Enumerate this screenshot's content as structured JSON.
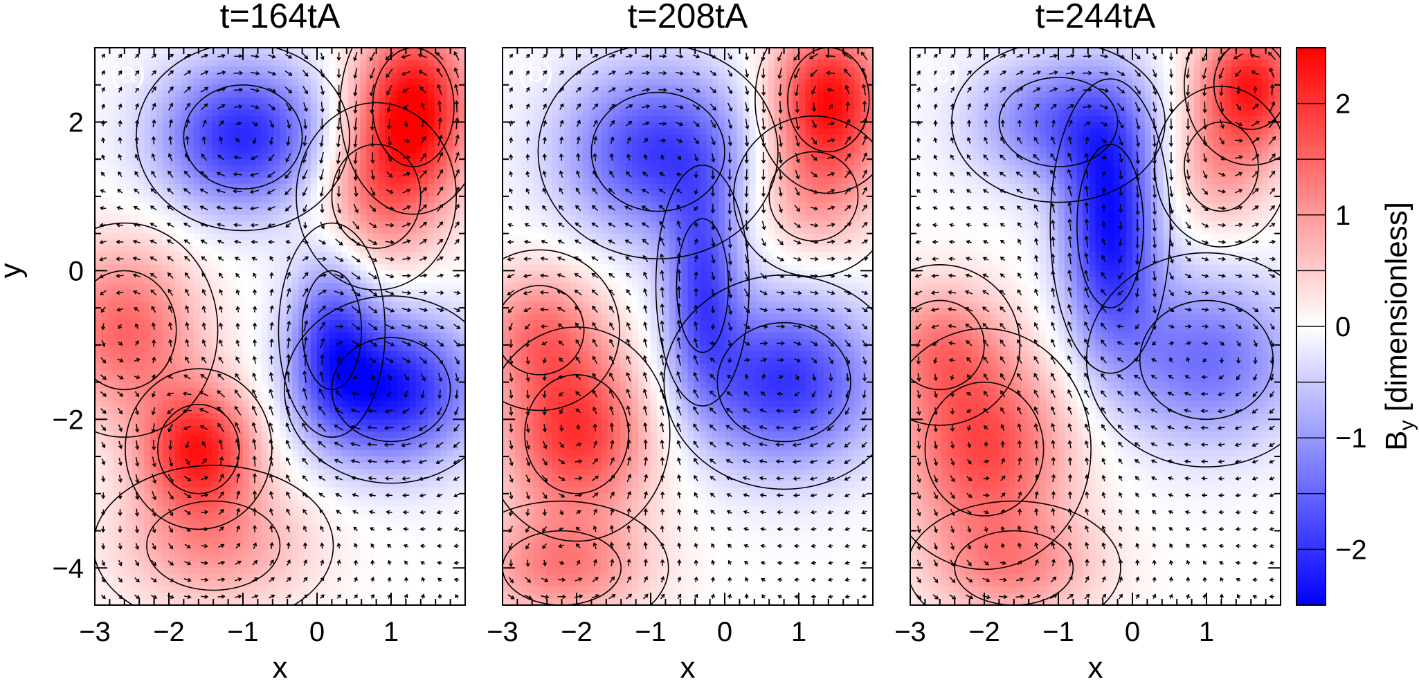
{
  "chart_data": {
    "type": "heatmap",
    "panels": [
      {
        "id": "a",
        "letter": "(a)",
        "title": "t=164tA",
        "xlabel": "x",
        "ylabel": "y",
        "xlim": [
          -3,
          2
        ],
        "ylim": [
          -4.5,
          3
        ],
        "xticks": [
          -3,
          -2,
          -1,
          0,
          1
        ],
        "xtick_labels": [
          "−3",
          "−2",
          "−1",
          "0",
          "1"
        ],
        "yticks": [
          -4,
          -2,
          0,
          2
        ],
        "ytick_labels": [
          "−4",
          "−2",
          "0",
          "2"
        ],
        "field_blobs": [
          {
            "x": 1.3,
            "y": 2.2,
            "amp": 2.5,
            "sx": 0.55,
            "sy": 0.8
          },
          {
            "x": 0.8,
            "y": 1.0,
            "amp": 1.2,
            "sx": 0.6,
            "sy": 0.7
          },
          {
            "x": -1.0,
            "y": 1.8,
            "amp": -2.1,
            "sx": 0.8,
            "sy": 0.7
          },
          {
            "x": 1.0,
            "y": -1.6,
            "amp": -2.3,
            "sx": 0.8,
            "sy": 0.7
          },
          {
            "x": 0.2,
            "y": -0.8,
            "amp": -1.4,
            "sx": 0.4,
            "sy": 0.8
          },
          {
            "x": -1.6,
            "y": -2.4,
            "amp": 2.2,
            "sx": 0.55,
            "sy": 0.6
          },
          {
            "x": -2.6,
            "y": -0.8,
            "amp": 1.5,
            "sx": 0.7,
            "sy": 0.8
          },
          {
            "x": -1.4,
            "y": -3.7,
            "amp": 1.0,
            "sx": 0.9,
            "sy": 0.6
          }
        ]
      },
      {
        "id": "b",
        "letter": "(b)",
        "title": "t=208tA",
        "xlabel": "x",
        "ylabel": "",
        "xlim": [
          -3,
          2
        ],
        "ylim": [
          -4.5,
          3
        ],
        "xticks": [
          -3,
          -2,
          -1,
          0,
          1
        ],
        "xtick_labels": [
          "−3",
          "−2",
          "−1",
          "0",
          "1"
        ],
        "yticks": [
          -4,
          -2,
          0,
          2
        ],
        "ytick_labels": [],
        "field_blobs": [
          {
            "x": 1.4,
            "y": 2.3,
            "amp": 2.4,
            "sx": 0.55,
            "sy": 0.7
          },
          {
            "x": 1.2,
            "y": 1.0,
            "amp": 0.9,
            "sx": 0.6,
            "sy": 0.6
          },
          {
            "x": -0.9,
            "y": 1.6,
            "amp": -1.9,
            "sx": 0.9,
            "sy": 0.8
          },
          {
            "x": 0.8,
            "y": -1.5,
            "amp": -2.0,
            "sx": 0.9,
            "sy": 0.8
          },
          {
            "x": -0.3,
            "y": -0.2,
            "amp": -1.6,
            "sx": 0.35,
            "sy": 0.9
          },
          {
            "x": -2.0,
            "y": -2.2,
            "amp": 2.0,
            "sx": 0.7,
            "sy": 0.8
          },
          {
            "x": -2.5,
            "y": -0.8,
            "amp": 1.2,
            "sx": 0.6,
            "sy": 0.6
          },
          {
            "x": -2.2,
            "y": -4.0,
            "amp": 1.2,
            "sx": 0.8,
            "sy": 0.5
          }
        ]
      },
      {
        "id": "c",
        "letter": "(c)",
        "title": "t=244tA",
        "xlabel": "x",
        "ylabel": "",
        "xlim": [
          -3,
          2
        ],
        "ylim": [
          -4.5,
          3
        ],
        "xticks": [
          -3,
          -2,
          -1,
          0,
          1
        ],
        "xtick_labels": [
          "−3",
          "−2",
          "−1",
          "0",
          "1"
        ],
        "yticks": [
          -4,
          -2,
          0,
          2
        ],
        "ytick_labels": [],
        "field_blobs": [
          {
            "x": 1.6,
            "y": 2.5,
            "amp": 2.2,
            "sx": 0.5,
            "sy": 0.6
          },
          {
            "x": 1.2,
            "y": 1.4,
            "amp": 0.9,
            "sx": 0.5,
            "sy": 0.6
          },
          {
            "x": -0.3,
            "y": 0.6,
            "amp": -2.3,
            "sx": 0.45,
            "sy": 1.1
          },
          {
            "x": -1.0,
            "y": 2.0,
            "amp": -1.4,
            "sx": 0.8,
            "sy": 0.6
          },
          {
            "x": 1.0,
            "y": -1.2,
            "amp": -1.4,
            "sx": 0.9,
            "sy": 0.8
          },
          {
            "x": -2.0,
            "y": -2.4,
            "amp": 1.8,
            "sx": 0.8,
            "sy": 0.9
          },
          {
            "x": -2.6,
            "y": -1.0,
            "amp": 1.1,
            "sx": 0.6,
            "sy": 0.6
          },
          {
            "x": -1.6,
            "y": -4.0,
            "amp": 1.0,
            "sx": 0.8,
            "sy": 0.5
          }
        ]
      }
    ],
    "colorbar": {
      "label_main": "B",
      "label_sub": "y",
      "label_rest": " [dimensionless]",
      "range": [
        -2.5,
        2.5
      ],
      "ticks": [
        -2,
        -1,
        0,
        1,
        2
      ],
      "tick_labels": [
        "−2",
        "−1",
        "0",
        "1",
        "2"
      ],
      "colors": {
        "neg": "#0000ff",
        "zero": "#ffffff",
        "pos": "#ff0000"
      }
    }
  }
}
